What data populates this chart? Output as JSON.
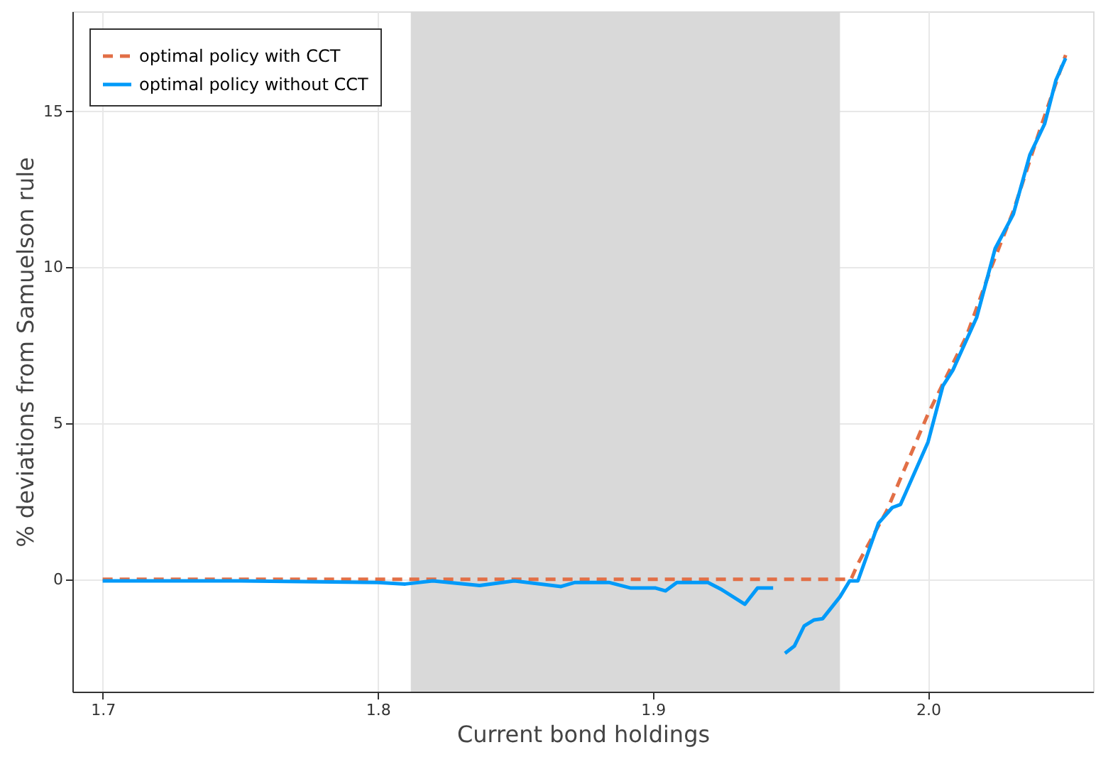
{
  "chart_data": {
    "type": "line",
    "xlabel": "Current bond holdings",
    "ylabel": "% deviations from Samuelson rule",
    "xlim": [
      1.689,
      2.06
    ],
    "ylim": [
      -3.6,
      18.2
    ],
    "xticks": [
      1.7,
      1.8,
      1.9,
      {
        "value": 2.0,
        "label": "2.0"
      }
    ],
    "yticks": [
      0,
      5,
      10,
      15
    ],
    "grid": true,
    "legend": "top left",
    "bands": [
      {
        "axis": "x",
        "from": 1.812,
        "to": 1.968,
        "color": "#d9d9d9"
      }
    ],
    "series": [
      {
        "name": "optimal policy with CCT",
        "color": "#e26f46",
        "line_style": "dashed",
        "x": [
          1.7,
          1.972,
          1.9745,
          1.985,
          2.0,
          2.014,
          2.023,
          2.031,
          2.041,
          2.05
        ],
        "values": [
          0,
          0,
          0.5,
          2.2,
          5.3,
          7.8,
          10.0,
          11.8,
          14.5,
          16.8
        ]
      },
      {
        "name": "optimal policy without CCT",
        "color": "#009af9",
        "line_style": "solid",
        "x": [
          1.7,
          1.75,
          1.8,
          1.81,
          1.82,
          1.837,
          1.8496,
          1.8666,
          1.8717,
          1.884,
          1.892,
          1.901,
          1.9046,
          1.9087,
          1.92,
          1.925,
          1.9334,
          1.938,
          1.9437,
          1.946,
          1.948,
          1.9514,
          1.955,
          1.9586,
          1.9617,
          1.968,
          1.9715,
          1.9745,
          1.982,
          1.987,
          1.99,
          2.0,
          2.0054,
          2.009,
          2.0177,
          2.0244,
          2.031,
          2.037,
          2.0424,
          2.0465,
          2.05
        ],
        "values": [
          -0.05,
          -0.05,
          -0.1,
          -0.15,
          -0.05,
          -0.2,
          -0.05,
          -0.23,
          -0.1,
          -0.1,
          -0.28,
          -0.28,
          -0.37,
          -0.1,
          -0.1,
          -0.33,
          -0.8,
          -0.28,
          -0.28,
          null,
          -2.37,
          -2.14,
          -1.49,
          -1.3,
          -1.26,
          -0.56,
          -0.05,
          -0.05,
          1.8,
          2.3,
          2.4,
          4.4,
          6.2,
          6.7,
          8.4,
          10.6,
          11.7,
          13.6,
          14.6,
          16.0,
          16.7
        ]
      }
    ]
  }
}
